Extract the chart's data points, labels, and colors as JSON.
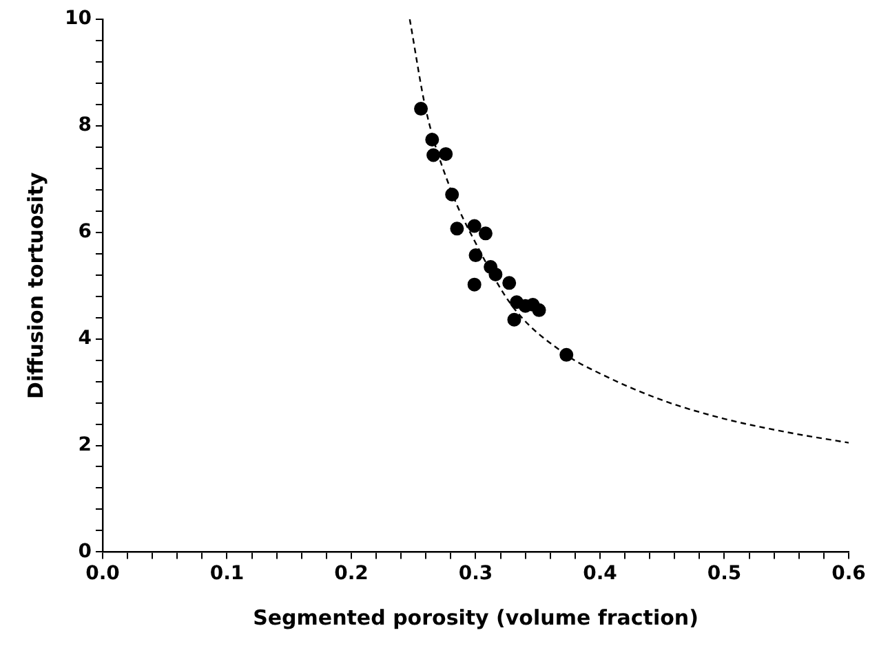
{
  "chart_data": {
    "type": "scatter",
    "xlabel": "Segmented porosity (volume fraction)",
    "ylabel": "Diffusion tortuosity",
    "xlim": [
      0,
      0.6
    ],
    "ylim": [
      0,
      10
    ],
    "xticks": [
      {
        "value": 0,
        "label": "0.0"
      },
      {
        "value": 0.02,
        "label": null
      },
      {
        "value": 0.04,
        "label": null
      },
      {
        "value": 0.06,
        "label": null
      },
      {
        "value": 0.08,
        "label": null
      },
      0.1,
      {
        "value": 0.12,
        "label": null
      },
      {
        "value": 0.14,
        "label": null
      },
      {
        "value": 0.16,
        "label": null
      },
      {
        "value": 0.18,
        "label": null
      },
      0.2,
      {
        "value": 0.22,
        "label": null
      },
      {
        "value": 0.24,
        "label": null
      },
      {
        "value": 0.26,
        "label": null
      },
      {
        "value": 0.28,
        "label": null
      },
      0.3,
      {
        "value": 0.32,
        "label": null
      },
      {
        "value": 0.34,
        "label": null
      },
      {
        "value": 0.36,
        "label": null
      },
      {
        "value": 0.38,
        "label": null
      },
      0.4,
      {
        "value": 0.42,
        "label": null
      },
      {
        "value": 0.44,
        "label": null
      },
      {
        "value": 0.46,
        "label": null
      },
      {
        "value": 0.48,
        "label": null
      },
      0.5,
      {
        "value": 0.52,
        "label": null
      },
      {
        "value": 0.54,
        "label": null
      },
      {
        "value": 0.56,
        "label": null
      },
      {
        "value": 0.58,
        "label": null
      },
      0.6
    ],
    "yticks": [
      0,
      {
        "value": 0.4,
        "label": null
      },
      {
        "value": 0.8,
        "label": null
      },
      {
        "value": 1.2,
        "label": null
      },
      {
        "value": 1.6,
        "label": null
      },
      2,
      {
        "value": 2.4,
        "label": null
      },
      {
        "value": 2.8,
        "label": null
      },
      {
        "value": 3.2,
        "label": null
      },
      {
        "value": 3.6,
        "label": null
      },
      4,
      {
        "value": 4.4,
        "label": null
      },
      {
        "value": 4.8,
        "label": null
      },
      {
        "value": 5.2,
        "label": null
      },
      {
        "value": 5.6,
        "label": null
      },
      6,
      {
        "value": 6.4,
        "label": null
      },
      {
        "value": 6.8,
        "label": null
      },
      {
        "value": 7.2,
        "label": null
      },
      {
        "value": 7.6,
        "label": null
      },
      8,
      {
        "value": 8.4,
        "label": null
      },
      {
        "value": 8.8,
        "label": null
      },
      {
        "value": 9.2,
        "label": null
      },
      {
        "value": 9.6,
        "label": null
      },
      10
    ],
    "grid": false,
    "legend": false,
    "series": [
      {
        "color": "#000000",
        "marker": "circle",
        "x": [
          0.256,
          0.265,
          0.266,
          0.276,
          0.281,
          0.285,
          0.299,
          0.308,
          0.3,
          0.312,
          0.316,
          0.299,
          0.327,
          0.333,
          0.331,
          0.34,
          0.346,
          0.351,
          0.373
        ],
        "values": [
          8.32,
          7.74,
          7.45,
          7.47,
          6.71,
          6.07,
          6.12,
          5.98,
          5.57,
          5.35,
          5.21,
          5.02,
          5.05,
          4.69,
          4.36,
          4.62,
          4.64,
          4.54,
          3.7
        ]
      },
      {
        "type": "line",
        "color": "#000000",
        "marker": "none",
        "line_style": "dashed",
        "x": [
          0.247,
          0.26,
          0.28,
          0.3,
          0.33,
          0.373,
          0.4,
          0.45,
          0.5,
          0.55,
          0.6
        ],
        "values": [
          10,
          8.3,
          6.8,
          5.8,
          4.6,
          3.7,
          3.35,
          2.85,
          2.5,
          2.25,
          2.05
        ]
      }
    ]
  }
}
